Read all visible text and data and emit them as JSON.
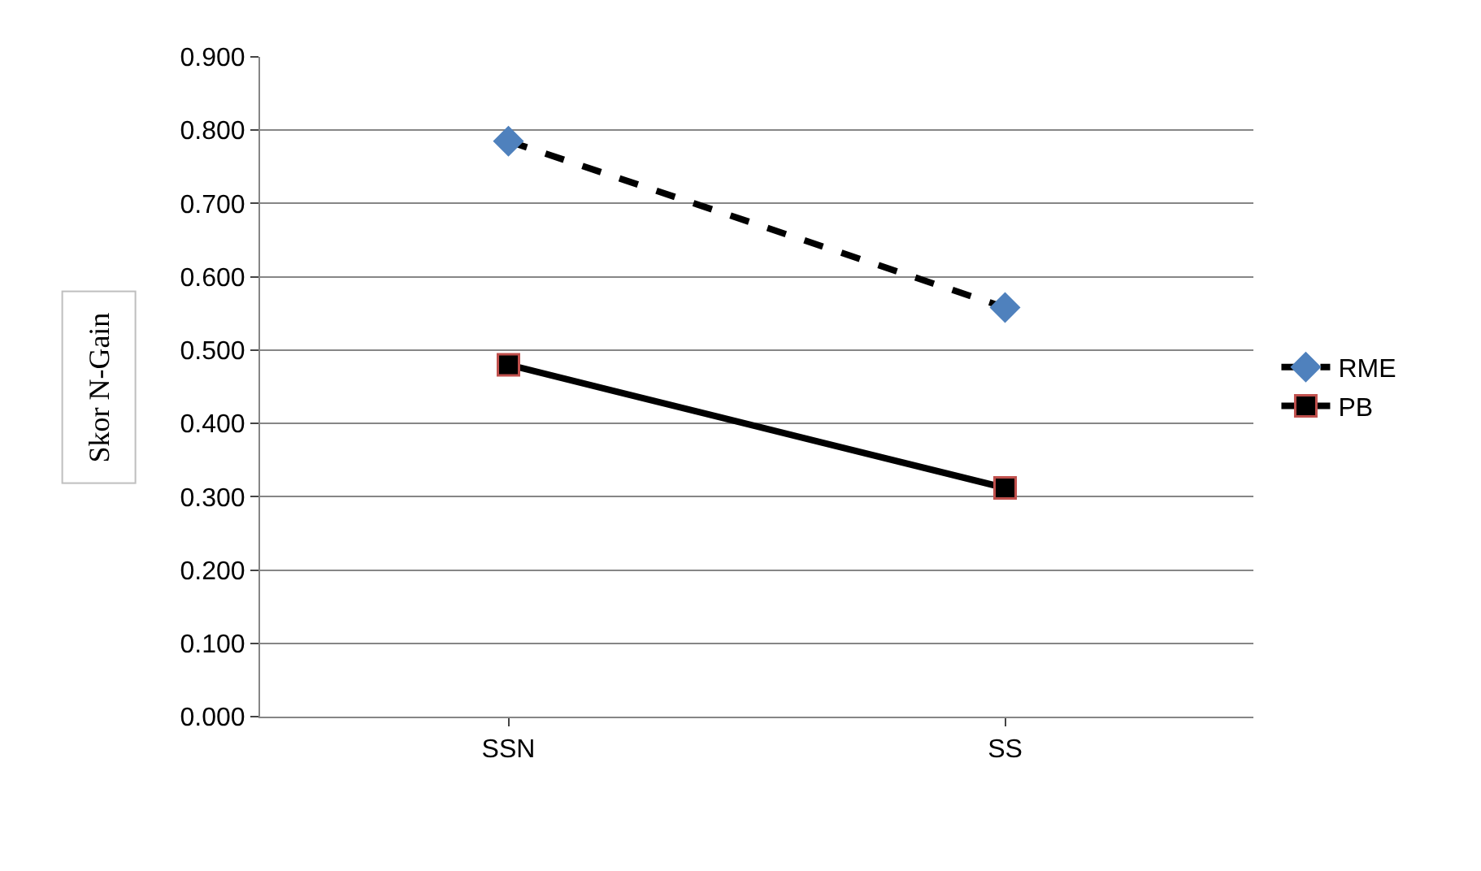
{
  "chart_data": {
    "type": "line",
    "ylabel": "Skor N-Gain",
    "categories": [
      "SSN",
      "SS"
    ],
    "series": [
      {
        "name": "RME",
        "color": "#4f81bd",
        "values": [
          0.785,
          0.558
        ],
        "marker": "diamond",
        "line_style": "dashed"
      },
      {
        "name": "PB",
        "color": "#000000",
        "values": [
          0.48,
          0.312
        ],
        "marker": "square",
        "line_style": "solid"
      }
    ],
    "ylim": [
      0,
      0.9
    ],
    "yticks": [
      {
        "value": 0,
        "label": "0.000"
      },
      {
        "value": 0.1,
        "label": "0.100"
      },
      {
        "value": 0.2,
        "label": "0.200"
      },
      {
        "value": 0.3,
        "label": "0.300"
      },
      {
        "value": 0.4,
        "label": "0.400"
      },
      {
        "value": 0.5,
        "label": "0.500"
      },
      {
        "value": 0.6,
        "label": "0.600"
      },
      {
        "value": 0.7,
        "label": "0.700"
      },
      {
        "value": 0.8,
        "label": "0.800"
      },
      {
        "value": 0.9,
        "label": "0.900"
      }
    ],
    "grid": "y",
    "legend": "right"
  }
}
